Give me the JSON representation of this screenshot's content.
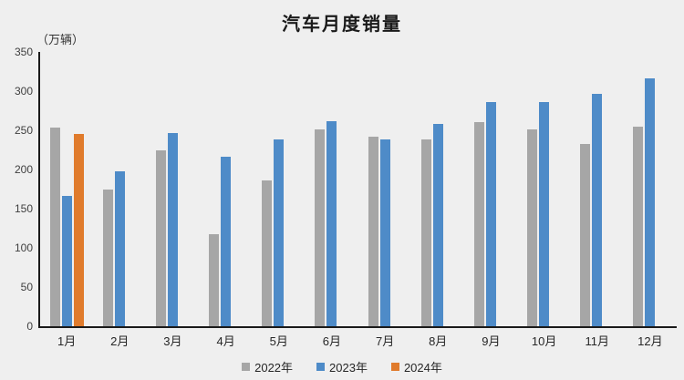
{
  "title": "汽车月度销量",
  "unit_label": "（万辆）",
  "colors": {
    "background": "#efefef",
    "axis": "#1a1a1a",
    "tick_text": "#3f3f3f",
    "series_2022": "#a6a6a6",
    "series_2023": "#4e8bc8",
    "series_2024": "#e07b2c"
  },
  "chart_data": {
    "type": "bar",
    "title": "汽车月度销量",
    "ylabel": "（万辆）",
    "xlabel": "",
    "categories": [
      "1月",
      "2月",
      "3月",
      "4月",
      "5月",
      "6月",
      "7月",
      "8月",
      "9月",
      "10月",
      "11月",
      "12月"
    ],
    "series": [
      {
        "name": "2022年",
        "color": "#a6a6a6",
        "values": [
          253,
          174,
          224,
          118,
          186,
          251,
          242,
          239,
          261,
          251,
          233,
          255
        ]
      },
      {
        "name": "2023年",
        "color": "#4e8bc8",
        "values": [
          166,
          198,
          246,
          216,
          238,
          262,
          239,
          258,
          286,
          286,
          297,
          316
        ]
      },
      {
        "name": "2024年",
        "color": "#e07b2c",
        "values": [
          245,
          null,
          null,
          null,
          null,
          null,
          null,
          null,
          null,
          null,
          null,
          null
        ]
      }
    ],
    "ylim": [
      0,
      350
    ],
    "ytick_step": 50,
    "grid": false,
    "legend_position": "bottom"
  }
}
